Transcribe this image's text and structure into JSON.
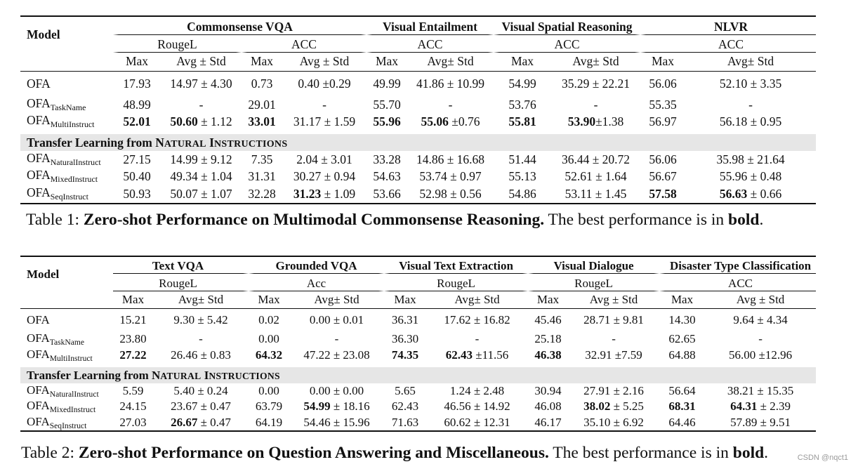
{
  "table1": {
    "model_label": "Model",
    "tasks": [
      "Commonsense VQA",
      "Visual Entailment",
      "Visual Spatial Reasoning",
      "NLVR"
    ],
    "metrics": [
      "RougeL",
      "ACC",
      "ACC",
      "ACC",
      "ACC"
    ],
    "subcols": [
      "Max",
      "Avg ± Std",
      "Max",
      "Avg ± Std",
      "Max",
      "Avg± Std",
      "Max",
      "Avg± Std",
      "Max",
      "Avg± Std"
    ],
    "section_label": {
      "prefix": "Transfer Learning from ",
      "n": "N",
      "atural": "ATURAL",
      "i": "I",
      "nstructions": "NSTRUCTIONS"
    },
    "rows": [
      {
        "model": "OFA",
        "sub": "",
        "cells": [
          "17.93",
          "14.97 ± 4.30",
          "0.73",
          "0.40 ±0.29",
          "49.99",
          "41.86 ± 10.99",
          "54.99",
          "35.29 ± 22.21",
          "56.06",
          "52.10 ± 3.35"
        ]
      },
      {
        "model": "OFA",
        "sub": "TaskName",
        "cells": [
          "48.99",
          "-",
          "29.01",
          "-",
          "55.70",
          "-",
          "53.76",
          "-",
          "55.35",
          "-"
        ]
      },
      {
        "model": "OFA",
        "sub": "MultiInstruct",
        "cells": [
          "52.01",
          "50.60",
          "± 1.12",
          "33.01",
          "31.17 ± 1.59",
          "55.96",
          "55.06",
          "±0.76",
          "55.81",
          "53.90",
          "±1.38",
          "56.97",
          "56.18 ± 0.95"
        ]
      },
      {
        "model": "OFA",
        "sub": "NaturalInstruct",
        "cells": [
          "27.15",
          "14.99 ± 9.12",
          "7.35",
          "2.04 ± 3.01",
          "33.28",
          "14.86 ± 16.68",
          "51.44",
          "36.44 ± 20.72",
          "56.06",
          "35.98 ± 21.64"
        ]
      },
      {
        "model": "OFA",
        "sub": "MixedInstruct",
        "cells": [
          "50.40",
          "49.34 ± 1.04",
          "31.31",
          "30.27 ± 0.94",
          "54.63",
          "53.74 ± 0.97",
          "55.13",
          "52.61 ± 1.64",
          "56.67",
          "55.96 ± 0.48"
        ]
      },
      {
        "model": "OFA",
        "sub": "SeqInstruct",
        "cells": [
          "50.93",
          "50.07 ± 1.07",
          "32.28",
          "31.23",
          "± 1.09",
          "53.66",
          "52.98 ± 0.56",
          "54.86",
          "53.11 ± 1.45",
          "57.58",
          "56.63",
          "± 0.66"
        ]
      }
    ]
  },
  "caption1": {
    "label": "Table 1: ",
    "title": "Zero-shot Performance on Multimodal Commonsense Reasoning.",
    "rest": " The best performance is in ",
    "bold_word": "bold",
    "end": "."
  },
  "table2": {
    "model_label": "Model",
    "tasks": [
      "Text VQA",
      "Grounded VQA",
      "Visual Text Extraction",
      "Visual Dialogue",
      "Disaster Type Classification"
    ],
    "metrics": [
      "RougeL",
      "Acc",
      "RougeL",
      "RougeL",
      "ACC"
    ],
    "subcols": [
      "Max",
      "Avg± Std",
      "Max",
      "Avg± Std",
      "Max",
      "Avg± Std",
      "Max",
      "Avg ± Std",
      "Max",
      "Avg ± Std"
    ],
    "rows": [
      {
        "model": "OFA",
        "sub": "",
        "cells": [
          "15.21",
          "9.30 ± 5.42",
          "0.02",
          "0.00 ± 0.01",
          "36.31",
          "17.62 ± 16.82",
          "45.46",
          "28.71 ± 9.81",
          "14.30",
          "9.64 ± 4.34"
        ]
      },
      {
        "model": "OFA",
        "sub": "TaskName",
        "cells": [
          "23.80",
          "-",
          "0.00",
          "-",
          "36.30",
          "-",
          "25.18",
          "-",
          "62.65",
          "-"
        ]
      },
      {
        "model": "OFA",
        "sub": "MultiInstruct",
        "cells": [
          "27.22",
          "26.46 ± 0.83",
          "64.32",
          "47.22 ± 23.08",
          "74.35",
          "62.43",
          "±11.56",
          "46.38",
          "32.91 ±7.59",
          "64.88",
          "56.00 ±12.96"
        ]
      },
      {
        "model": "OFA",
        "sub": "NaturalInstruct",
        "cells": [
          "5.59",
          "5.40 ± 0.24",
          "0.00",
          "0.00 ± 0.00",
          "5.65",
          "1.24 ± 2.48",
          "30.94",
          "27.91 ± 2.16",
          "56.64",
          "38.21 ± 15.35"
        ]
      },
      {
        "model": "OFA",
        "sub": "MixedInstruct",
        "cells": [
          "24.15",
          "23.67 ± 0.47",
          "63.79",
          "54.99",
          "± 18.16",
          "62.43",
          "46.56 ± 14.92",
          "46.08",
          "38.02",
          "± 5.25",
          "68.31",
          "64.31",
          "± 2.39"
        ]
      },
      {
        "model": "OFA",
        "sub": "SeqInstruct",
        "cells": [
          "27.03",
          "26.67",
          "± 0.47",
          "64.19",
          "54.46 ± 15.96",
          "71.63",
          "60.62 ± 12.31",
          "46.17",
          "35.10 ± 6.92",
          "64.46",
          "57.89 ± 9.51"
        ]
      }
    ]
  },
  "caption2": {
    "label": "Table 2: ",
    "title": "Zero-shot Performance on Question Answering and Miscellaneous.",
    "rest": " The best performance is in ",
    "bold_word": "bold",
    "end": "."
  },
  "watermark": "CSDN @nqct1"
}
